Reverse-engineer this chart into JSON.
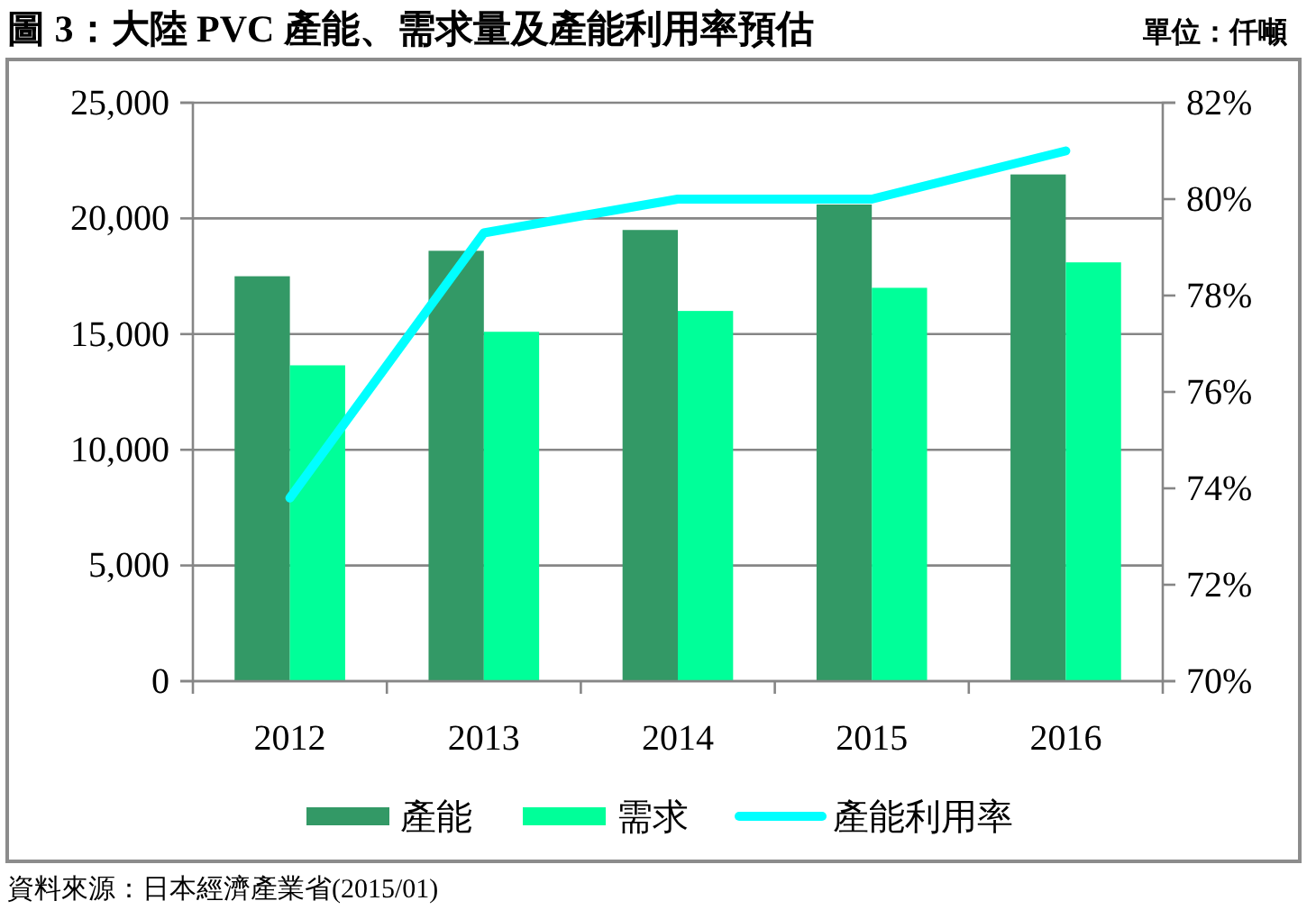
{
  "chart_data": {
    "type": "bar",
    "title": "圖 3：大陸 PVC 產能、需求量及產能利用率預估",
    "subtitle": "單位：仟噸",
    "categories": [
      "2012",
      "2013",
      "2014",
      "2015",
      "2016"
    ],
    "series": [
      {
        "name": "產能",
        "color": "#339966",
        "values": [
          17500,
          18600,
          19500,
          20600,
          21900
        ]
      },
      {
        "name": "需求",
        "color": "#00ff99",
        "values": [
          13650,
          15100,
          16000,
          17000,
          18100
        ]
      },
      {
        "name": "產能利用率",
        "type": "line",
        "axis": "y2",
        "color": "#00ffff",
        "values": [
          73.8,
          79.3,
          80.0,
          80.0,
          81.0
        ]
      }
    ],
    "ylim": [
      0,
      25000
    ],
    "yticks": [
      0,
      {
        "value": 5000,
        "label": "5,000"
      },
      {
        "value": 10000,
        "label": "10,000"
      },
      {
        "value": 15000,
        "label": "15,000"
      },
      {
        "value": 20000,
        "label": "20,000"
      },
      {
        "value": 25000,
        "label": "25,000"
      }
    ],
    "y2lim": [
      70,
      82
    ],
    "y2ticks": [
      {
        "value": 70,
        "label": "70%"
      },
      {
        "value": 72,
        "label": "72%"
      },
      {
        "value": 74,
        "label": "74%"
      },
      {
        "value": 76,
        "label": "76%"
      },
      {
        "value": 78,
        "label": "78%"
      },
      {
        "value": 80,
        "label": "80%"
      },
      {
        "value": 82,
        "label": "82%"
      }
    ],
    "grid": "y",
    "legend": "bottom",
    "annotations": [
      "資料來源：日本經濟產業省(2015/01)"
    ]
  }
}
